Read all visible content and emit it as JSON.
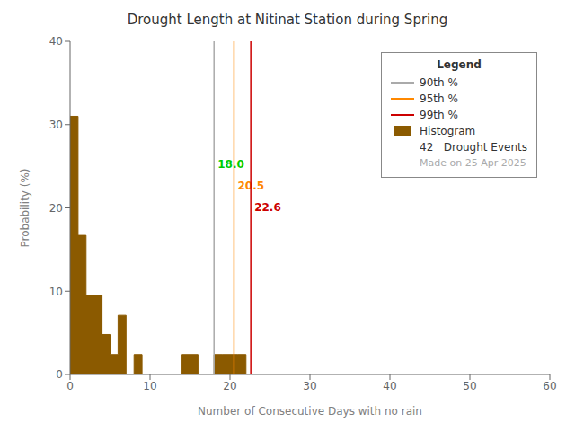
{
  "chart_data": {
    "type": "histogram",
    "title": "Drought Length at Nitinat Station during Spring",
    "x_label": "Number of Consecutive Days with no rain",
    "y_label": "Probability (%)",
    "xlim": [
      0,
      60
    ],
    "ylim": [
      0,
      40
    ],
    "xticks": [
      0,
      10,
      20,
      30,
      40,
      50,
      60
    ],
    "yticks": [
      0,
      10,
      20,
      30,
      40
    ],
    "background": "#ffffff",
    "name": "Histogram",
    "color": "#8B5A00",
    "bins": [
      0,
      1,
      2,
      3,
      4,
      5,
      6,
      7,
      8,
      9,
      10,
      11,
      12,
      13,
      14,
      15,
      16,
      17,
      18,
      19,
      20,
      21,
      22,
      23,
      24,
      25,
      26,
      27,
      28,
      29,
      30
    ],
    "values": [
      31.0,
      16.7,
      9.5,
      9.5,
      4.8,
      2.4,
      7.1,
      0,
      2.4,
      0,
      0,
      0,
      0,
      0,
      2.4,
      2.4,
      0,
      0,
      2.4,
      2.4,
      2.4,
      2.4,
      0,
      0,
      0,
      0,
      0,
      0,
      0,
      0
    ],
    "lines": [
      {
        "name": "90th %",
        "x": 18.0,
        "color": "#aaaaaa"
      },
      {
        "name": "95th %",
        "x": 20.5,
        "color": "#ff8800"
      },
      {
        "name": "99th %",
        "x": 22.6,
        "color": "#cc0000"
      }
    ],
    "annotations": [
      {
        "text": "18.0",
        "x": 18.0,
        "color": "#00cc00"
      },
      {
        "text": "20.5",
        "x": 20.5,
        "color": "#ff8800"
      },
      {
        "text": "22.6",
        "x": 22.6,
        "color": "#cc0000"
      }
    ],
    "legend": "upper right",
    "legend_title": "Legend",
    "legend_texts": [
      {
        "text": "42   Drought Events"
      },
      {
        "text": "Made on 25 Apr 2025",
        "color": "#aaaaaa"
      }
    ]
  }
}
